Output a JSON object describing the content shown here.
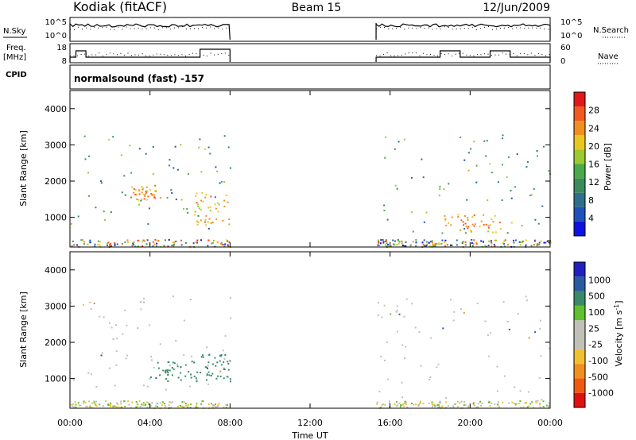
{
  "header": {
    "station": "Kodiak (fitACF)",
    "beam": "Beam 15",
    "date": "12/Jun/2009"
  },
  "top_panels": {
    "nsky_label": "N.Sky",
    "nsearch_label": "N.Search",
    "left_ticks": [
      "10^5",
      "10^0"
    ],
    "right_ticks": [
      "10^5",
      "10^0"
    ],
    "freq_label_1": "Freq.",
    "freq_label_2": "[MHz]",
    "freq_ticks": [
      "18",
      "8"
    ],
    "nave_label": "Nave",
    "nave_ticks": [
      "60",
      "0"
    ],
    "cpid_label": "CPID",
    "cpid_text": "normalsound (fast) -157"
  },
  "colors": {
    "power_scale": [
      "#1010e0",
      "#1f52b8",
      "#2f6e8c",
      "#3d8a5a",
      "#4aa94a",
      "#9cc830",
      "#e8c820",
      "#f09020",
      "#f05a20",
      "#e01818"
    ],
    "velocity_scale": [
      "#e01010",
      "#f05a10",
      "#f09020",
      "#f0c030",
      "#c0c0b8",
      "#c0c0b8",
      "#60c030",
      "#3a8a6a",
      "#2a5aa0",
      "#2020c0"
    ]
  },
  "chart_data": [
    {
      "type": "heatmap",
      "title": "",
      "xlabel": "Time UT",
      "ylabel": "Slant Range [km]",
      "xlim": [
        0,
        24
      ],
      "ylim": [
        180,
        4500
      ],
      "x_ticks": [
        "00:00",
        "04:00",
        "08:00",
        "12:00",
        "16:00",
        "20:00",
        "00:00"
      ],
      "y_ticks": [
        "1000",
        "2000",
        "3000",
        "4000"
      ],
      "colorbar_label": "Power [dB]",
      "colorbar_ticks": [
        "4",
        "8",
        "12",
        "16",
        "20",
        "24",
        "28"
      ],
      "colorbar_range": [
        0,
        32
      ],
      "data_gaps_hours": [
        [
          8,
          15.3
        ]
      ],
      "features": [
        {
          "t_start": 0.0,
          "t_end": 8.0,
          "range_min": 700,
          "range_max": 3300,
          "level": 12
        },
        {
          "t_start": 3.0,
          "t_end": 4.5,
          "range_min": 1500,
          "range_max": 1900,
          "level": 26
        },
        {
          "t_start": 6.2,
          "t_end": 8.0,
          "range_min": 800,
          "range_max": 1700,
          "level": 24
        },
        {
          "t_start": 15.3,
          "t_end": 24.0,
          "range_min": 300,
          "range_max": 3300,
          "level": 12
        },
        {
          "t_start": 18.5,
          "t_end": 21.5,
          "range_min": 600,
          "range_max": 1100,
          "level": 26
        }
      ]
    },
    {
      "type": "heatmap",
      "title": "",
      "xlabel": "Time UT",
      "ylabel": "Slant Range [km]",
      "xlim": [
        0,
        24
      ],
      "ylim": [
        180,
        4500
      ],
      "x_ticks": [
        "00:00",
        "04:00",
        "08:00",
        "12:00",
        "16:00",
        "20:00",
        "00:00"
      ],
      "y_ticks": [
        "1000",
        "2000",
        "3000",
        "4000"
      ],
      "colorbar_label": "Velocity [m s^-1]",
      "colorbar_ticks": [
        "1000",
        "500",
        "100",
        "25",
        "-25",
        "-100",
        "-500",
        "-1000"
      ],
      "data_gaps_hours": [
        [
          8,
          15.3
        ]
      ],
      "features": [
        {
          "t_start": 0.0,
          "t_end": 8.0,
          "range_min": 700,
          "range_max": 3300,
          "velocity": 0
        },
        {
          "t_start": 4.0,
          "t_end": 6.5,
          "range_min": 900,
          "range_max": 1500,
          "velocity": 150
        },
        {
          "t_start": 6.5,
          "t_end": 8.0,
          "range_min": 900,
          "range_max": 1700,
          "velocity": 300
        },
        {
          "t_start": 15.3,
          "t_end": 24.0,
          "range_min": 300,
          "range_max": 3300,
          "velocity": 0
        }
      ]
    },
    {
      "type": "line",
      "title": "",
      "series": [
        {
          "name": "N.Sky"
        },
        {
          "name": "N.Search"
        }
      ],
      "xlim": [
        0,
        24
      ],
      "segments": [
        {
          "t_start": 0,
          "t_end": 8
        },
        {
          "t_start": 15.3,
          "t_end": 24
        }
      ]
    },
    {
      "type": "line",
      "title": "",
      "series": [
        {
          "name": "Freq."
        },
        {
          "name": "Nave"
        }
      ],
      "xlim": [
        0,
        24
      ],
      "segments": [
        {
          "t_start": 0,
          "t_end": 8
        },
        {
          "t_start": 15.3,
          "t_end": 24
        }
      ]
    }
  ]
}
